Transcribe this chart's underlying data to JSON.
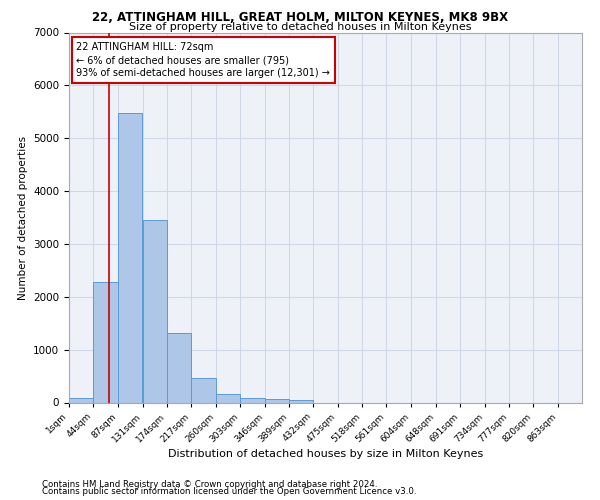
{
  "title1": "22, ATTINGHAM HILL, GREAT HOLM, MILTON KEYNES, MK8 9BX",
  "title2": "Size of property relative to detached houses in Milton Keynes",
  "xlabel": "Distribution of detached houses by size in Milton Keynes",
  "ylabel": "Number of detached properties",
  "footnote1": "Contains HM Land Registry data © Crown copyright and database right 2024.",
  "footnote2": "Contains public sector information licensed under the Open Government Licence v3.0.",
  "bin_labels": [
    "1sqm",
    "44sqm",
    "87sqm",
    "131sqm",
    "174sqm",
    "217sqm",
    "260sqm",
    "303sqm",
    "346sqm",
    "389sqm",
    "432sqm",
    "475sqm",
    "518sqm",
    "561sqm",
    "604sqm",
    "648sqm",
    "691sqm",
    "734sqm",
    "777sqm",
    "820sqm",
    "863sqm"
  ],
  "bar_values": [
    80,
    2280,
    5480,
    3450,
    1320,
    470,
    160,
    90,
    60,
    50,
    0,
    0,
    0,
    0,
    0,
    0,
    0,
    0,
    0,
    0
  ],
  "bin_width": 43,
  "bin_starts": [
    1,
    44,
    87,
    131,
    174,
    217,
    260,
    303,
    346,
    389,
    432,
    475,
    518,
    561,
    604,
    648,
    691,
    734,
    777,
    820
  ],
  "bar_color": "#aec6e8",
  "bar_edgecolor": "#5b9bd5",
  "grid_color": "#d0d8e8",
  "background_color": "#eef2f8",
  "marker_value": 72,
  "marker_color": "#cc0000",
  "annotation_text": "22 ATTINGHAM HILL: 72sqm\n← 6% of detached houses are smaller (795)\n93% of semi-detached houses are larger (12,301) →",
  "ylim": [
    0,
    7000
  ],
  "yticks": [
    0,
    1000,
    2000,
    3000,
    4000,
    5000,
    6000,
    7000
  ],
  "xlim_min": 1,
  "xlim_max": 906
}
